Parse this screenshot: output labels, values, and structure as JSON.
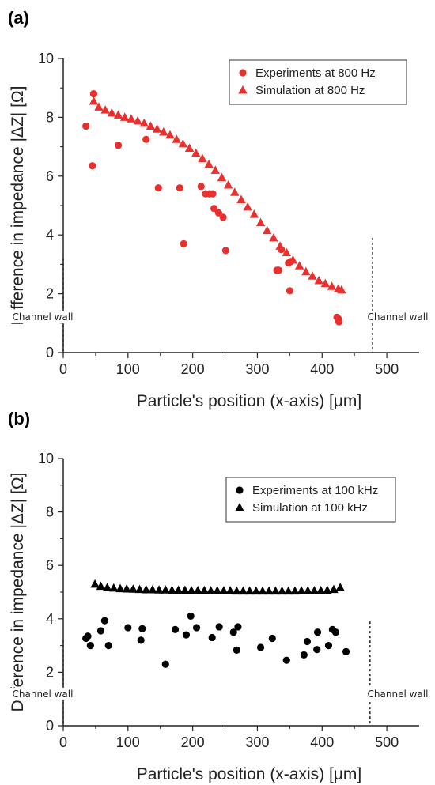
{
  "chart_data": [
    {
      "type": "scatter",
      "panel_label": "(a)",
      "xlabel": "Particle's position (x-axis) [μm]",
      "ylabel": "Difference in impedance |ΔZ| [Ω]",
      "xlim": [
        0,
        550
      ],
      "ylim": [
        0,
        10
      ],
      "xticks": [
        0,
        100,
        200,
        300,
        400,
        500
      ],
      "yticks": [
        0,
        2,
        4,
        6,
        8,
        10
      ],
      "grid": false,
      "legend_position": "top-right",
      "annotations": [
        {
          "text": "Channel wall",
          "x": 0
        },
        {
          "text": "Channel wall",
          "x": 478
        }
      ],
      "series": [
        {
          "name": "Experiments at 800 Hz",
          "marker": "circle",
          "color": "#e8312f",
          "points": [
            [
              35,
              7.7
            ],
            [
              45,
              6.35
            ],
            [
              47,
              8.8
            ],
            [
              85,
              7.05
            ],
            [
              128,
              7.25
            ],
            [
              147,
              5.6
            ],
            [
              180,
              5.6
            ],
            [
              186,
              3.7
            ],
            [
              213,
              5.65
            ],
            [
              220,
              5.4
            ],
            [
              226,
              5.4
            ],
            [
              231,
              5.4
            ],
            [
              233,
              4.9
            ],
            [
              240,
              4.75
            ],
            [
              247,
              4.6
            ],
            [
              251,
              3.47
            ],
            [
              330,
              2.8
            ],
            [
              333,
              2.8
            ],
            [
              337,
              3.5
            ],
            [
              348,
              3.05
            ],
            [
              350,
              2.1
            ],
            [
              352,
              3.1
            ],
            [
              423,
              1.2
            ],
            [
              425,
              1.15
            ],
            [
              426,
              1.05
            ]
          ]
        },
        {
          "name": "Simulation at 800 Hz",
          "marker": "triangle",
          "color": "#e8312f",
          "points": [
            [
              47,
              8.55
            ],
            [
              55,
              8.35
            ],
            [
              65,
              8.25
            ],
            [
              75,
              8.15
            ],
            [
              85,
              8.08
            ],
            [
              95,
              8.0
            ],
            [
              105,
              7.95
            ],
            [
              115,
              7.88
            ],
            [
              125,
              7.8
            ],
            [
              135,
              7.7
            ],
            [
              145,
              7.6
            ],
            [
              155,
              7.5
            ],
            [
              165,
              7.4
            ],
            [
              175,
              7.25
            ],
            [
              185,
              7.1
            ],
            [
              195,
              6.95
            ],
            [
              205,
              6.78
            ],
            [
              215,
              6.6
            ],
            [
              225,
              6.4
            ],
            [
              235,
              6.2
            ],
            [
              245,
              5.95
            ],
            [
              255,
              5.7
            ],
            [
              265,
              5.45
            ],
            [
              275,
              5.2
            ],
            [
              285,
              4.95
            ],
            [
              295,
              4.7
            ],
            [
              305,
              4.42
            ],
            [
              315,
              4.15
            ],
            [
              325,
              3.9
            ],
            [
              335,
              3.62
            ],
            [
              345,
              3.4
            ],
            [
              355,
              3.15
            ],
            [
              365,
              2.95
            ],
            [
              375,
              2.75
            ],
            [
              385,
              2.6
            ],
            [
              395,
              2.45
            ],
            [
              405,
              2.35
            ],
            [
              415,
              2.25
            ],
            [
              425,
              2.17
            ],
            [
              430,
              2.13
            ]
          ]
        }
      ]
    },
    {
      "type": "scatter",
      "panel_label": "(b)",
      "xlabel": "Particle's position (x-axis) [μm]",
      "ylabel": "Difference in impedance |ΔZ| [Ω]",
      "xlim": [
        0,
        550
      ],
      "ylim": [
        0,
        10
      ],
      "xticks": [
        0,
        100,
        200,
        300,
        400,
        500
      ],
      "yticks": [
        0,
        2,
        4,
        6,
        8,
        10
      ],
      "grid": false,
      "legend_position": "top-right",
      "annotations": [
        {
          "text": "Channel wall",
          "x": 0
        },
        {
          "text": "Channel wall",
          "x": 474
        }
      ],
      "series": [
        {
          "name": "Experiments at 100 kHz",
          "marker": "circle",
          "color": "#000000",
          "points": [
            [
              35,
              3.27
            ],
            [
              38,
              3.35
            ],
            [
              42,
              3.0
            ],
            [
              58,
              3.55
            ],
            [
              64,
              3.93
            ],
            [
              70,
              3.0
            ],
            [
              100,
              3.67
            ],
            [
              120,
              3.2
            ],
            [
              122,
              3.63
            ],
            [
              158,
              2.3
            ],
            [
              173,
              3.6
            ],
            [
              190,
              3.4
            ],
            [
              197,
              4.1
            ],
            [
              206,
              3.67
            ],
            [
              230,
              3.3
            ],
            [
              241,
              3.7
            ],
            [
              263,
              3.5
            ],
            [
              268,
              2.83
            ],
            [
              270,
              3.7
            ],
            [
              305,
              2.93
            ],
            [
              323,
              3.27
            ],
            [
              345,
              2.45
            ],
            [
              372,
              2.65
            ],
            [
              377,
              3.15
            ],
            [
              392,
              2.85
            ],
            [
              393,
              3.5
            ],
            [
              410,
              3.0
            ],
            [
              416,
              3.6
            ],
            [
              421,
              3.5
            ],
            [
              437,
              2.77
            ]
          ]
        },
        {
          "name": "Simulation at 100 kHz",
          "marker": "triangle",
          "color": "#000000",
          "points": [
            [
              49,
              5.3
            ],
            [
              58,
              5.22
            ],
            [
              68,
              5.17
            ],
            [
              78,
              5.15
            ],
            [
              88,
              5.13
            ],
            [
              98,
              5.12
            ],
            [
              108,
              5.11
            ],
            [
              118,
              5.1
            ],
            [
              128,
              5.09
            ],
            [
              138,
              5.09
            ],
            [
              148,
              5.08
            ],
            [
              158,
              5.08
            ],
            [
              168,
              5.07
            ],
            [
              178,
              5.07
            ],
            [
              188,
              5.07
            ],
            [
              198,
              5.06
            ],
            [
              208,
              5.06
            ],
            [
              218,
              5.06
            ],
            [
              228,
              5.05
            ],
            [
              238,
              5.05
            ],
            [
              248,
              5.05
            ],
            [
              258,
              5.05
            ],
            [
              268,
              5.04
            ],
            [
              278,
              5.04
            ],
            [
              288,
              5.04
            ],
            [
              298,
              5.04
            ],
            [
              308,
              5.04
            ],
            [
              318,
              5.04
            ],
            [
              328,
              5.04
            ],
            [
              338,
              5.04
            ],
            [
              348,
              5.04
            ],
            [
              358,
              5.04
            ],
            [
              368,
              5.05
            ],
            [
              378,
              5.05
            ],
            [
              388,
              5.05
            ],
            [
              398,
              5.06
            ],
            [
              408,
              5.07
            ],
            [
              418,
              5.1
            ],
            [
              428,
              5.17
            ]
          ]
        }
      ]
    }
  ]
}
